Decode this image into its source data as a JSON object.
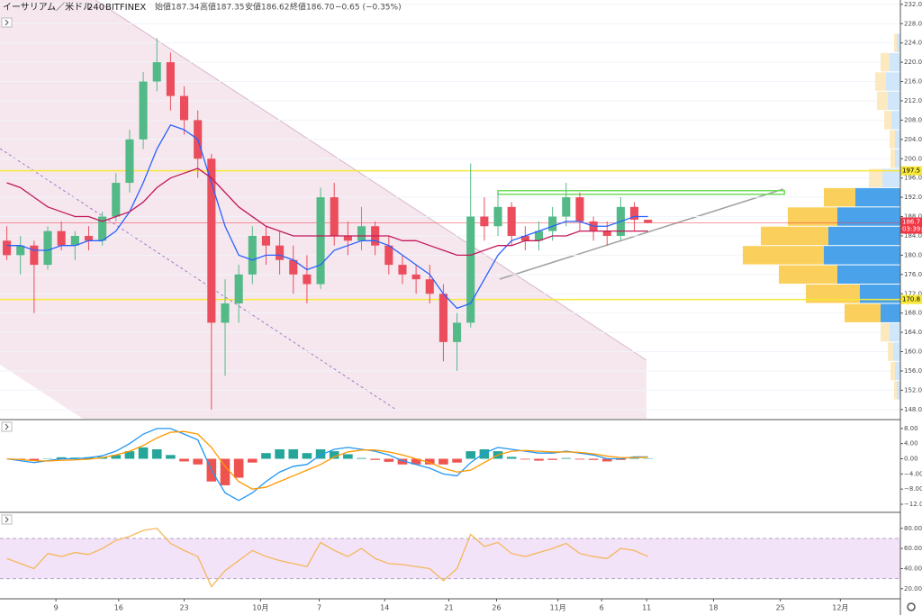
{
  "header": {
    "symbol": "イーサリアム／米ドル",
    "interval": "240",
    "exchange": "BITFINEX",
    "open": "始値187.34",
    "high": "高値187.35",
    "low": "安値186.62",
    "close": "終値186.70",
    "change": "−0.65 (−0.35%)"
  },
  "chart_data": [
    {
      "type": "candlestick",
      "xlim": [
        -0.5,
        65.5
      ],
      "ylim": [
        146.1,
        232.9
      ],
      "yticks": [
        {
          "value": 148,
          "label": "148.0"
        },
        {
          "value": 152,
          "label": "152.0"
        },
        {
          "value": 156,
          "label": "156.0"
        },
        {
          "value": 160,
          "label": "160.0"
        },
        {
          "value": 164,
          "label": "164.0"
        },
        {
          "value": 168,
          "label": "168.0"
        },
        {
          "value": 172,
          "label": "172.0"
        },
        {
          "value": 176,
          "label": "176.0"
        },
        {
          "value": 180,
          "label": "180.0"
        },
        {
          "value": 184,
          "label": "184.0"
        },
        {
          "value": 188,
          "label": "188.0"
        },
        {
          "value": 192,
          "label": "192.0"
        },
        {
          "value": 196,
          "label": "196.0"
        },
        {
          "value": 200,
          "label": "200.0"
        },
        {
          "value": 204,
          "label": "204.0"
        },
        {
          "value": 208,
          "label": "208.0"
        },
        {
          "value": 212,
          "label": "212.0"
        },
        {
          "value": 216,
          "label": "216.0"
        },
        {
          "value": 220,
          "label": "220.0"
        },
        {
          "value": 224,
          "label": "224.0"
        },
        {
          "value": 228,
          "label": "228.0"
        },
        {
          "value": 232,
          "label": "232.0"
        }
      ],
      "grid": true,
      "up_color": "#53b987",
      "down_color": "#eb4d5c",
      "open": [
        183,
        180,
        182,
        178,
        185,
        182,
        184,
        183,
        188,
        195,
        204,
        216,
        220,
        213,
        208,
        200,
        166,
        170,
        176,
        184,
        182,
        179,
        176,
        174,
        192,
        184,
        183,
        186,
        182,
        178,
        176,
        175,
        172,
        162,
        166,
        188,
        186,
        190,
        184,
        183,
        185,
        188,
        192,
        187,
        185,
        184,
        190,
        187.34
      ],
      "high": [
        186,
        184,
        183,
        186,
        187,
        185,
        186,
        189,
        197,
        206,
        218,
        225,
        222,
        215,
        210,
        201,
        175,
        178,
        186,
        186,
        185,
        182,
        180,
        194,
        195,
        187,
        190,
        187,
        184,
        180,
        178,
        178,
        174,
        168,
        199,
        192,
        193,
        191,
        186,
        187,
        190,
        195,
        193,
        188,
        187,
        192,
        191,
        187.35
      ],
      "low": [
        179,
        176,
        168,
        177,
        181,
        179,
        181,
        182,
        187,
        193,
        202,
        214,
        210,
        205,
        196,
        148,
        155,
        166,
        174,
        178,
        176,
        172,
        170,
        173,
        182,
        180,
        181,
        180,
        176,
        174,
        172,
        170,
        158,
        156,
        165,
        183,
        184,
        182,
        181,
        181,
        183,
        186,
        185,
        183,
        182,
        183,
        185,
        186.62
      ],
      "close": [
        180,
        182,
        178,
        185,
        182,
        184,
        183,
        188,
        195,
        204,
        216,
        220,
        213,
        208,
        200,
        166,
        170,
        176,
        184,
        182,
        179,
        176,
        174,
        192,
        184,
        183,
        186,
        182,
        178,
        176,
        175,
        172,
        162,
        166,
        188,
        186,
        190,
        184,
        183,
        185,
        188,
        192,
        187,
        185,
        184,
        190,
        187.34,
        186.7
      ],
      "series": [
        {
          "color": "#2962ff",
          "values": [
            182,
            182,
            181,
            181,
            182,
            182,
            183,
            183,
            185,
            189,
            195,
            202,
            207,
            206,
            204,
            195,
            186,
            180,
            179,
            180,
            180,
            179,
            177,
            178,
            181,
            182,
            183,
            183,
            182,
            180,
            178,
            176,
            172,
            169,
            170,
            175,
            180,
            183,
            184,
            185,
            186,
            187,
            187,
            186,
            186,
            187,
            188,
            188
          ]
        },
        {
          "color": "#c2185b",
          "values": [
            195,
            194,
            192,
            190,
            189,
            188,
            188,
            187,
            188,
            189,
            191,
            194,
            196,
            197,
            198,
            196,
            193,
            190,
            188,
            186,
            185,
            184,
            184,
            184,
            184,
            184,
            184,
            184,
            184,
            183,
            183,
            182,
            181,
            180,
            180,
            181,
            182,
            182,
            183,
            183,
            184,
            184,
            185,
            185,
            185,
            185,
            185,
            185
          ]
        }
      ],
      "hlines": [
        {
          "value": 197.5,
          "label": "197.5",
          "color": "#f7e83a"
        },
        {
          "value": 170.8,
          "label": "170.8",
          "color": "#f7e83a"
        }
      ],
      "price_line": {
        "value": 186.7,
        "label": "186.7",
        "countdown": "03:39:",
        "color": "#f23645"
      },
      "resistance": {
        "value": 193,
        "from": 36,
        "to": 57,
        "color": "#6fdc5c"
      },
      "volume_profile": {
        "levels": [
          152,
          156,
          160,
          164,
          168,
          172,
          176,
          180,
          184,
          188,
          192,
          196,
          200,
          204,
          208,
          212,
          216,
          220,
          224
        ],
        "up": [
          4,
          6,
          8,
          12,
          22,
          45,
          70,
          85,
          80,
          70,
          50,
          20,
          6,
          6,
          10,
          14,
          16,
          12,
          4
        ],
        "down": [
          3,
          5,
          6,
          10,
          40,
          60,
          65,
          90,
          75,
          55,
          35,
          15,
          5,
          6,
          8,
          12,
          12,
          10,
          3
        ],
        "value_area": [
          166,
          194
        ],
        "up_color": "#4aa3ea",
        "down_color": "#fbcf5b",
        "up_pale": "#cfe6fb",
        "down_pale": "#fde9c0"
      }
    },
    {
      "type": "macd",
      "xlim": [
        -0.5,
        65.5
      ],
      "ylim": [
        -13.9,
        10.1
      ],
      "yticks": [
        {
          "value": 8,
          "label": "8.00"
        },
        {
          "value": 4,
          "label": "4.00"
        },
        {
          "value": 0,
          "label": "0.00"
        },
        {
          "value": -4,
          "label": "−4.00"
        },
        {
          "value": -8,
          "label": "−8.00"
        },
        {
          "value": -12,
          "label": "−12.00"
        }
      ],
      "histogram": {
        "up_color": "#26a69a",
        "down_color": "#ef5350",
        "values": [
          0,
          -0.3,
          -0.5,
          0.1,
          0.4,
          0.3,
          0.4,
          0.5,
          1,
          2,
          3,
          2.5,
          1,
          -0.7,
          -1.5,
          -6,
          -7,
          -5,
          -1,
          1.5,
          2.5,
          2.5,
          1.5,
          2.5,
          2,
          1.2,
          0.2,
          -0.3,
          -0.8,
          -1.5,
          -1.5,
          -1.5,
          -1.5,
          -1,
          2,
          2.5,
          2,
          0.5,
          -0.2,
          -0.5,
          -0.3,
          0.2,
          -0.2,
          -0.3,
          -0.7,
          -0.3,
          0.2,
          0.1
        ]
      },
      "series": [
        {
          "color": "#2196f3",
          "values": [
            0,
            -0.5,
            -1,
            -0.5,
            0,
            0,
            0.3,
            0.8,
            2,
            4,
            6.5,
            8,
            8,
            6.5,
            5,
            -3,
            -9,
            -11,
            -9,
            -6,
            -3.5,
            -2,
            -1.5,
            1,
            2.5,
            3,
            2.5,
            2,
            1,
            -0.5,
            -1.5,
            -2.5,
            -4,
            -4.5,
            -1,
            1.5,
            3,
            2.5,
            2,
            1.5,
            1.5,
            2,
            1.5,
            1,
            0,
            0,
            0.5,
            0.5
          ]
        },
        {
          "color": "#ff9800",
          "values": [
            0,
            -0.2,
            -0.5,
            -0.6,
            -0.4,
            -0.3,
            -0.1,
            0.3,
            1,
            2,
            3.5,
            5.5,
            7,
            7.2,
            6.5,
            3,
            -2,
            -6,
            -8,
            -7.5,
            -6,
            -4.5,
            -3,
            -1.5,
            0.5,
            1.8,
            2.3,
            2.3,
            1.8,
            1,
            0,
            -1,
            -2.5,
            -3.5,
            -3,
            -1,
            1,
            2,
            2.2,
            2,
            1.8,
            1.8,
            1.7,
            1.3,
            0.7,
            0.3,
            0.3,
            0.4
          ]
        }
      ]
    },
    {
      "type": "rsi",
      "xlim": [
        -0.5,
        65.5
      ],
      "ylim": [
        10,
        95
      ],
      "yticks": [
        {
          "value": 20,
          "label": "20.00"
        },
        {
          "value": 40,
          "label": "40.00"
        },
        {
          "value": 60,
          "label": "60.00"
        },
        {
          "value": 80,
          "label": "80.00"
        }
      ],
      "band": [
        30,
        70
      ],
      "band_color": "#ecd7f7",
      "series": [
        {
          "color": "#f5b75b",
          "values": [
            50,
            45,
            40,
            55,
            52,
            56,
            54,
            60,
            68,
            72,
            78,
            80,
            65,
            58,
            52,
            22,
            38,
            48,
            58,
            52,
            48,
            45,
            42,
            66,
            58,
            52,
            60,
            50,
            45,
            44,
            42,
            40,
            28,
            40,
            74,
            62,
            66,
            55,
            52,
            56,
            60,
            65,
            55,
            52,
            50,
            60,
            58,
            52
          ]
        }
      ],
      "xticks": [
        {
          "value": 3.6,
          "label": "9"
        },
        {
          "value": 8.2,
          "label": "16"
        },
        {
          "value": 13,
          "label": "23"
        },
        {
          "value": 18.6,
          "label": "10月"
        },
        {
          "value": 22.9,
          "label": "7"
        },
        {
          "value": 27.7,
          "label": "14"
        },
        {
          "value": 32.4,
          "label": "21"
        },
        {
          "value": 35.9,
          "label": "26"
        },
        {
          "value": 40.4,
          "label": "11月"
        },
        {
          "value": 43.6,
          "label": "6"
        },
        {
          "value": 46.9,
          "label": "11"
        },
        {
          "value": 51.8,
          "label": "18"
        },
        {
          "value": 56.7,
          "label": "25"
        },
        {
          "value": 61.1,
          "label": "12月"
        }
      ]
    }
  ]
}
